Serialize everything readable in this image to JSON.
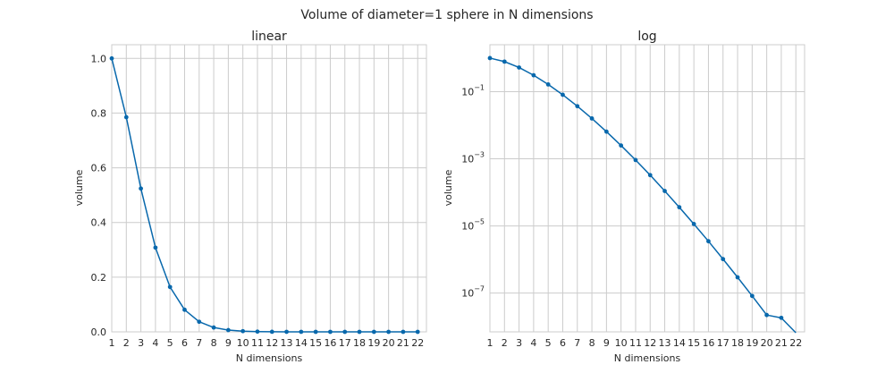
{
  "suptitle": "Volume of diameter=1 sphere in N dimensions",
  "chart_data": [
    {
      "type": "line",
      "title": "linear",
      "xlabel": "N dimensions",
      "ylabel": "volume",
      "x": [
        1,
        2,
        3,
        4,
        5,
        6,
        7,
        8,
        9,
        10,
        11,
        12,
        13,
        14,
        15,
        16,
        17,
        18,
        19,
        20,
        21,
        22
      ],
      "xlim": [
        1,
        22.6
      ],
      "ylim": [
        0,
        1.05
      ],
      "yscale": "linear",
      "yticks": [
        0.0,
        0.2,
        0.4,
        0.6,
        0.8,
        1.0
      ],
      "ytick_labels": [
        "0.0",
        "0.2",
        "0.4",
        "0.6",
        "0.8",
        "1.0"
      ],
      "grid": true,
      "series": [
        {
          "color": "#0868ac",
          "marker": "circle",
          "values": [
            1.0,
            0.785,
            0.524,
            0.308,
            0.164,
            0.0807,
            0.0369,
            0.0159,
            0.00644,
            0.00249,
            0.00092,
            0.000326,
            0.00011,
            3.6e-05,
            1.14e-05,
            3.5e-06,
            1.03e-06,
            2.95e-07,
            8.22e-08,
            2.22e-08,
            1.83e-08,
            0.0
          ]
        }
      ]
    },
    {
      "type": "line",
      "title": "log",
      "xlabel": "N dimensions",
      "ylabel": "volume",
      "x": [
        1,
        2,
        3,
        4,
        5,
        6,
        7,
        8,
        9,
        10,
        11,
        12,
        13,
        14,
        15,
        16,
        17,
        18,
        19,
        20,
        21,
        22
      ],
      "xlim": [
        1,
        22.6
      ],
      "ylim": [
        7e-09,
        2.5
      ],
      "yscale": "log",
      "yticks": [
        0.1,
        0.001,
        1e-05,
        1e-07
      ],
      "ytick_labels": [
        "10^-1",
        "10^-3",
        "10^-5",
        "10^-7"
      ],
      "grid": true,
      "series": [
        {
          "color": "#0868ac",
          "marker": "circle",
          "values": [
            1.0,
            0.785,
            0.524,
            0.308,
            0.164,
            0.0807,
            0.0369,
            0.0159,
            0.00644,
            0.00249,
            0.00092,
            0.000326,
            0.00011,
            3.6e-05,
            1.14e-05,
            3.5e-06,
            1.03e-06,
            2.95e-07,
            8.22e-08,
            2.22e-08,
            1.83e-08,
            0.0
          ]
        }
      ]
    }
  ]
}
